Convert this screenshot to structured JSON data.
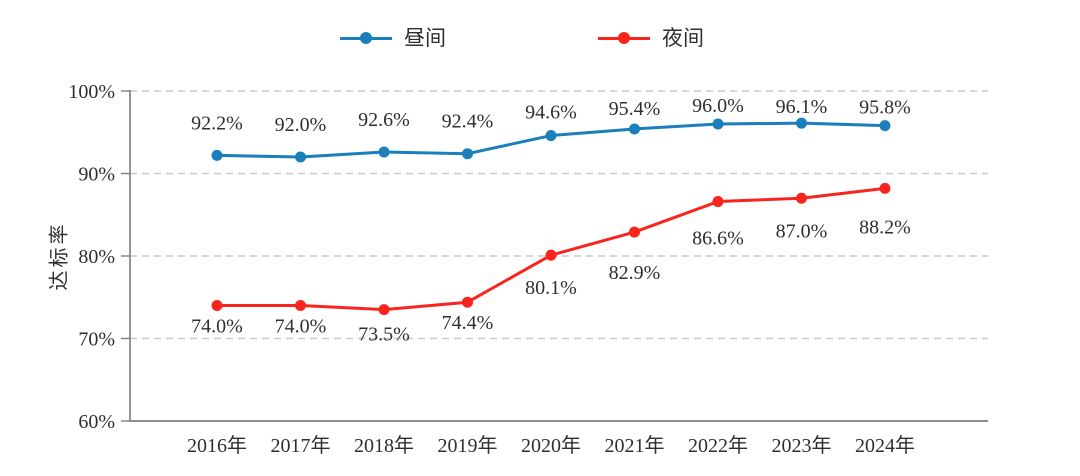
{
  "chart_data": {
    "type": "line",
    "title": "",
    "categories": [
      "2016年",
      "2017年",
      "2018年",
      "2019年",
      "2020年",
      "2021年",
      "2022年",
      "2023年",
      "2024年"
    ],
    "series": [
      {
        "id": "daytime",
        "name": "昼间",
        "color": "#1a7fba",
        "values": [
          92.2,
          92.0,
          92.6,
          92.4,
          94.6,
          95.4,
          96.0,
          96.1,
          95.8
        ],
        "point_labels": [
          "92.2%",
          "92.0%",
          "92.6%",
          "92.4%",
          "94.6%",
          "95.4%",
          "96.0%",
          "96.1%",
          "95.8%"
        ],
        "label_position": "above"
      },
      {
        "id": "night",
        "name": "夜间",
        "color": "#f8251f",
        "values": [
          74.0,
          74.0,
          73.5,
          74.4,
          80.1,
          82.9,
          86.6,
          87.0,
          88.2
        ],
        "point_labels": [
          "74.0%",
          "74.0%",
          "73.5%",
          "74.4%",
          "80.1%",
          "82.9%",
          "86.6%",
          "87.0%",
          "88.2%"
        ],
        "label_position": "below"
      }
    ],
    "xlabel": "",
    "ylabel": "达标率",
    "ylim": [
      60,
      100
    ],
    "yticks": [
      60,
      70,
      80,
      90,
      100
    ],
    "ytick_labels": [
      "60%",
      "70%",
      "80%",
      "90%",
      "100%"
    ],
    "grid": "horizontal-dashed",
    "legend_position": "top-center",
    "colors": {
      "grid": "#c9c9c9",
      "axis": "#7d7d7d",
      "text": "#2f2f2f"
    }
  }
}
